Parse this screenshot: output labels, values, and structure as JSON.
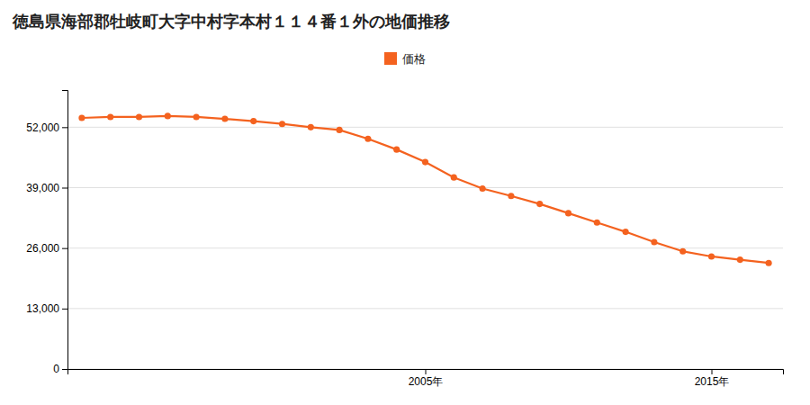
{
  "chart_data": {
    "type": "line",
    "title": "徳島県海部郡牡岐町大字中村字本村１１４番１外の地価推移",
    "x": [
      1993,
      1994,
      1995,
      1996,
      1997,
      1998,
      1999,
      2000,
      2001,
      2002,
      2003,
      2004,
      2005,
      2006,
      2007,
      2008,
      2009,
      2010,
      2011,
      2012,
      2013,
      2014,
      2015,
      2016,
      2017
    ],
    "series": [
      {
        "name": "価格",
        "color": "#F4621F",
        "marker": "circle",
        "values": [
          54000,
          54200,
          54200,
          54400,
          54200,
          53800,
          53300,
          52700,
          52000,
          51400,
          49500,
          47200,
          44500,
          41200,
          38800,
          37200,
          35500,
          33500,
          31500,
          29500,
          27300,
          25300,
          24200,
          23500,
          22800
        ]
      }
    ],
    "xlim": [
      1992.5,
      2017.5
    ],
    "xticks": [
      {
        "value": 2005,
        "label": "2005年"
      },
      {
        "value": 2015,
        "label": "2015年"
      }
    ],
    "ylim": [
      0,
      60000
    ],
    "yticks": [
      0,
      {
        "value": 13000,
        "label": "13,000"
      },
      {
        "value": 26000,
        "label": "26,000"
      },
      {
        "value": 39000,
        "label": "39,000"
      },
      {
        "value": 52000,
        "label": "52,000"
      }
    ],
    "grid": true,
    "legend": "top"
  }
}
